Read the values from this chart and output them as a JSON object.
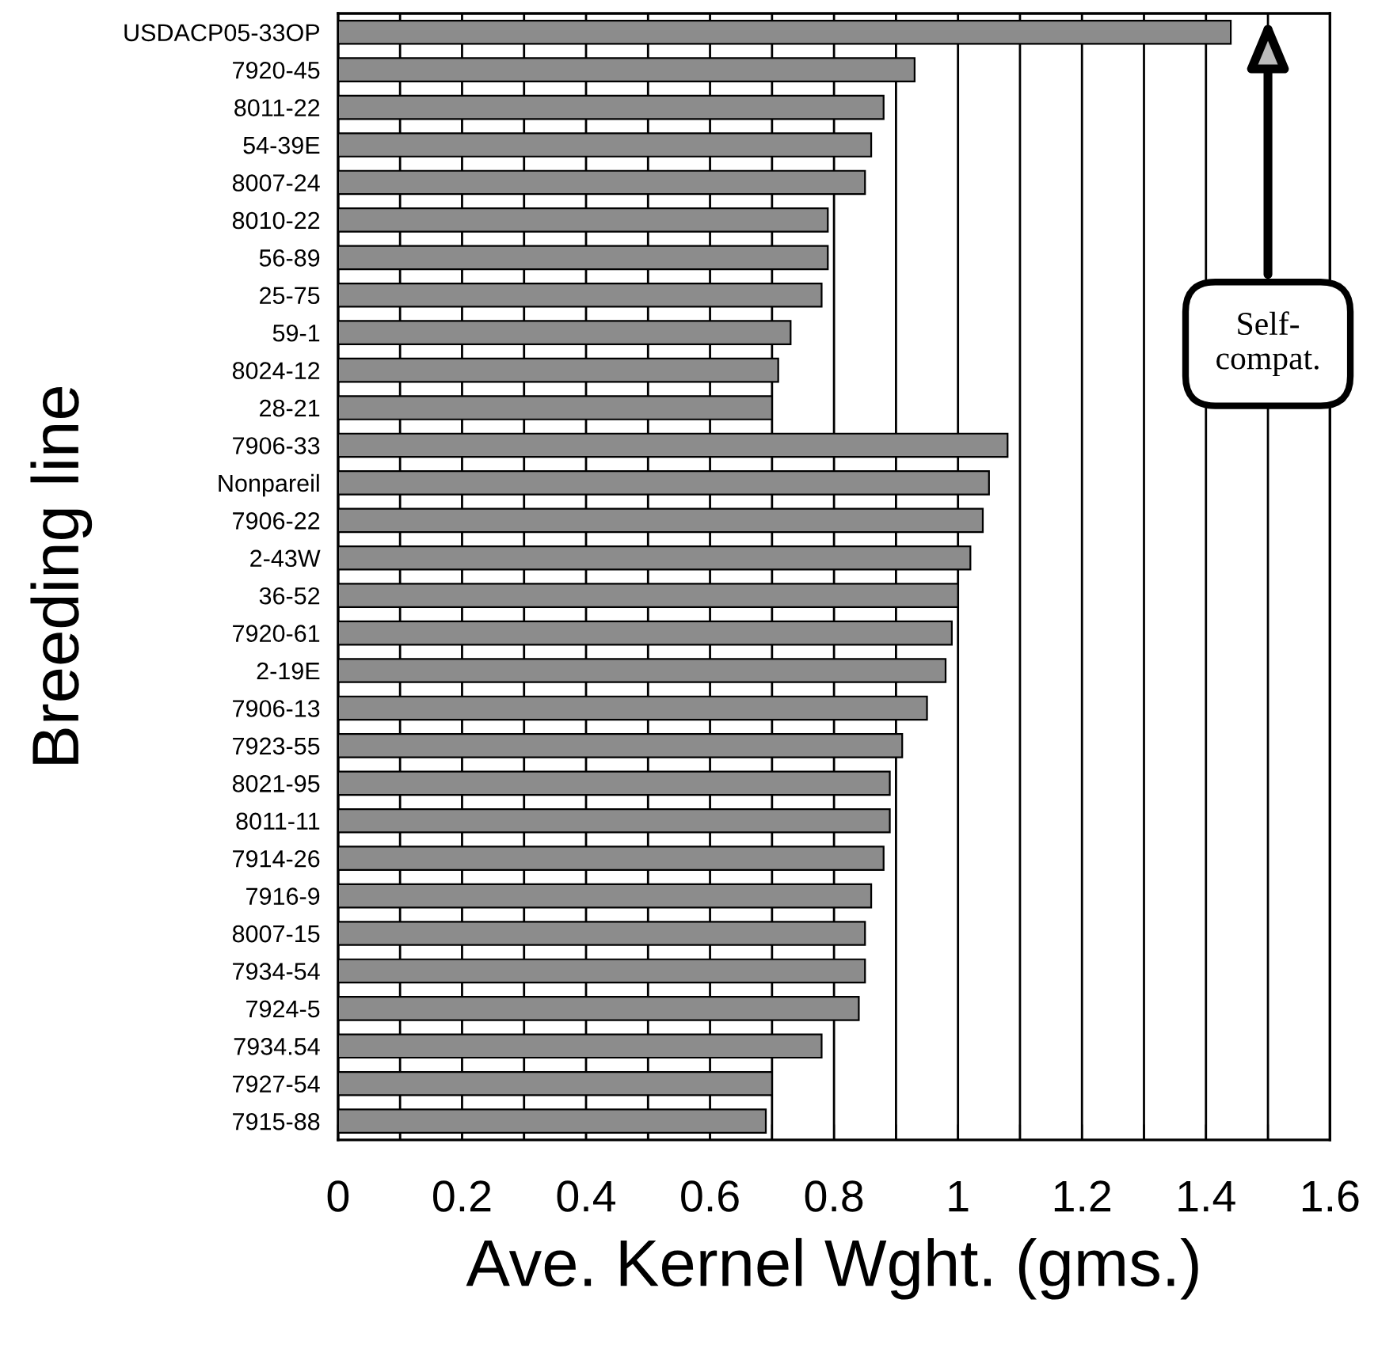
{
  "chart_data": {
    "type": "bar",
    "orientation": "horizontal",
    "xlabel": "Ave. Kernel Wght. (gms.)",
    "ylabel": "Breeding line",
    "categories": [
      "USDACP05-33OP",
      "7920-45",
      "8011-22",
      "54-39E",
      "8007-24",
      "8010-22",
      "56-89",
      "25-75",
      "59-1",
      "8024-12",
      "28-21",
      "7906-33",
      "Nonpareil",
      "7906-22",
      "2-43W",
      "36-52",
      "7920-61",
      "2-19E",
      "7906-13",
      "7923-55",
      "8021-95",
      "8011-11",
      "7914-26",
      "7916-9",
      "8007-15",
      "7934-54",
      "7924-5",
      "7934.54",
      "7927-54",
      "7915-88"
    ],
    "values": [
      1.44,
      0.93,
      0.88,
      0.86,
      0.85,
      0.79,
      0.79,
      0.78,
      0.73,
      0.71,
      0.7,
      1.08,
      1.05,
      1.04,
      1.02,
      1.0,
      0.99,
      0.98,
      0.95,
      0.91,
      0.89,
      0.89,
      0.88,
      0.86,
      0.85,
      0.85,
      0.84,
      0.78,
      0.7,
      0.69
    ],
    "color": "#8c8c8c",
    "xlim": [
      0,
      1.6
    ],
    "xticks": [
      0,
      {
        "value": 0.1,
        "label": null
      },
      0.2,
      {
        "value": 0.3,
        "label": null
      },
      0.4,
      {
        "value": 0.5,
        "label": null
      },
      0.6,
      {
        "value": 0.7,
        "label": null
      },
      0.8,
      {
        "value": 0.9,
        "label": null
      },
      1,
      {
        "value": 1.1,
        "label": null
      },
      1.2,
      {
        "value": 1.3,
        "label": null
      },
      1.4,
      {
        "value": 1.5,
        "label": null
      },
      1.6
    ],
    "grid": "x",
    "annotations": [
      "Self-\ncompat."
    ]
  }
}
